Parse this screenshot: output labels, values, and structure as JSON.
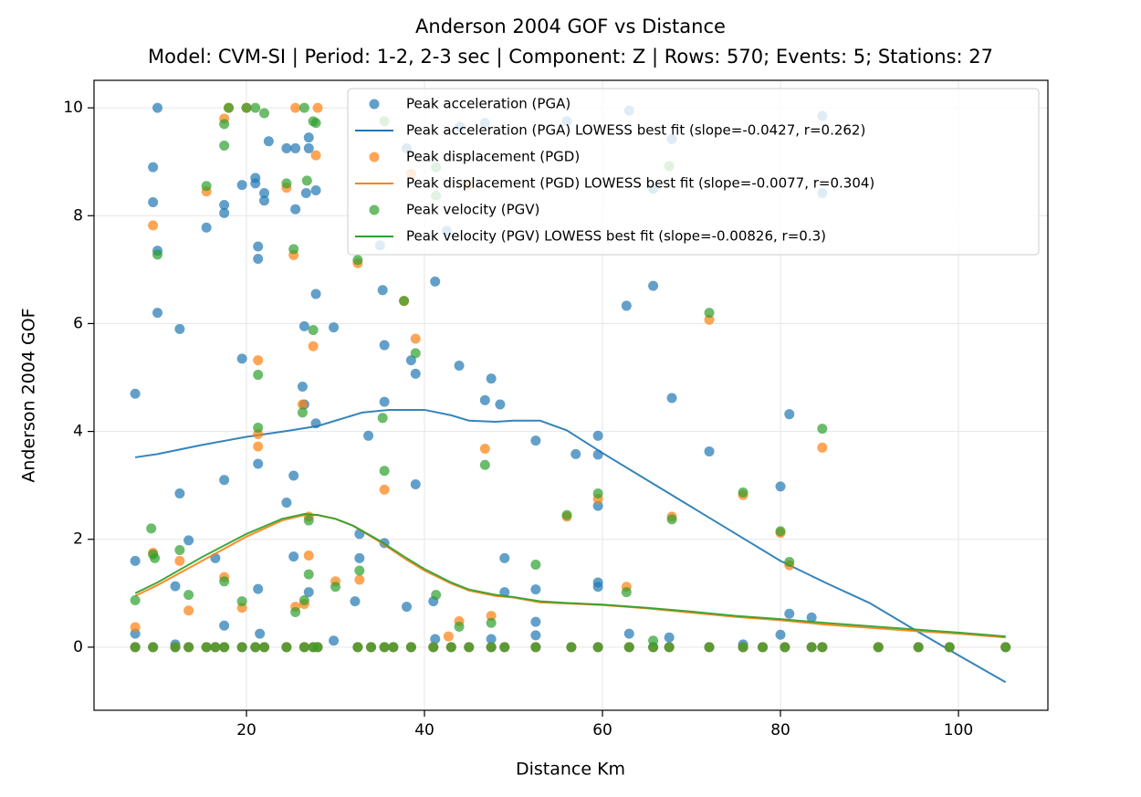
{
  "chart_data": {
    "type": "scatter",
    "title": "Anderson 2004 GOF vs Distance",
    "subtitle": "Model: CVM-SI | Period: 1-2, 2-3 sec | Component: Z | Rows: 570; Events: 5; Stations: 27",
    "x_label": "Distance Km",
    "y_label": "Anderson 2004 GOF",
    "xlim": [
      2.87,
      110.05
    ],
    "ylim": [
      -1.17,
      10.51
    ],
    "xticks": [
      20,
      40,
      60,
      80,
      100
    ],
    "yticks": [
      0,
      2,
      4,
      6,
      8,
      10
    ],
    "grid": true,
    "legend": "upper right",
    "series": [
      {
        "name": "Peak acceleration (PGA)",
        "type": "scatter",
        "color": "#1f77b4",
        "x": [
          7.5,
          7.5,
          7.5,
          9.5,
          9.5,
          10,
          10,
          10,
          12,
          12,
          12.5,
          12.5,
          13.5,
          15.5,
          16.5,
          17.5,
          17.5,
          17.5,
          17.5,
          19.5,
          19.5,
          21,
          21,
          21.3,
          21.3,
          21.3,
          21.3,
          21.5,
          22,
          22,
          22.5,
          24.5,
          24.5,
          25.3,
          25.3,
          25.5,
          25.5,
          26.3,
          26.5,
          26.5,
          26.7,
          27,
          27,
          27,
          27.8,
          27.8,
          27.8,
          29.8,
          29.8,
          32.2,
          32.7,
          32.7,
          33.7,
          35,
          35.3,
          35.5,
          35.5,
          35.5,
          38,
          38,
          38.5,
          39,
          39,
          41,
          41.2,
          41.2,
          42.5,
          43.9,
          44,
          46.8,
          46.8,
          47.5,
          47.5,
          48.5,
          49,
          49,
          52.5,
          52.5,
          52.5,
          52.5,
          56,
          57,
          59.5,
          59.5,
          59.5,
          59.5,
          59.5,
          62.7,
          63,
          63,
          65.7,
          65.7,
          67.5,
          67.8,
          67.8,
          72,
          75.8,
          80,
          80,
          81,
          81,
          83.5,
          84.7,
          84.7,
          7.5,
          9.5,
          12,
          13.5,
          15.5,
          16.5,
          17.5,
          19.5,
          21,
          22,
          24.5,
          26.5,
          27.5,
          28,
          32.5,
          34,
          35.5,
          36.5,
          38.5,
          41,
          43,
          45,
          47.5,
          49,
          52.5,
          56.5,
          59.5,
          63,
          65.7,
          67.5,
          72,
          75.8,
          78,
          80.5,
          83.5,
          84.7,
          91,
          95.5,
          99,
          105.3
        ],
        "values": [
          4.7,
          1.6,
          0.25,
          8.9,
          8.25,
          10,
          7.35,
          6.2,
          1.13,
          0.05,
          5.9,
          2.85,
          1.98,
          7.78,
          1.65,
          8.05,
          8.2,
          3.1,
          0.4,
          5.35,
          8.57,
          8.7,
          8.6,
          7.43,
          7.2,
          3.4,
          1.08,
          0.25,
          8.42,
          8.28,
          9.38,
          9.25,
          2.68,
          1.68,
          3.18,
          8.12,
          9.25,
          4.83,
          5.95,
          4.5,
          8.42,
          9.45,
          9.25,
          1.02,
          8.47,
          6.55,
          4.15,
          5.93,
          0.12,
          0.85,
          2.1,
          1.65,
          3.92,
          7.45,
          6.62,
          5.6,
          4.55,
          1.93,
          0.75,
          9.25,
          5.32,
          5.07,
          3.02,
          0.85,
          6.78,
          0.15,
          7.72,
          5.22,
          9.65,
          4.58,
          9.72,
          4.98,
          0.15,
          4.5,
          1.65,
          1.02,
          3.83,
          1.07,
          0.47,
          0.22,
          9.75,
          3.58,
          3.92,
          3.57,
          2.62,
          1.2,
          1.12,
          6.33,
          0.25,
          9.95,
          6.7,
          8.5,
          0.18,
          4.62,
          9.42,
          3.63,
          0.05,
          2.98,
          0.23,
          4.32,
          0.62,
          0.55,
          9.85,
          8.42,
          0,
          0,
          0,
          0,
          0,
          0,
          0,
          0,
          0,
          0,
          0,
          0,
          0,
          0,
          0,
          0,
          0,
          0,
          0,
          0,
          0,
          0,
          0,
          0,
          0,
          0,
          0,
          0,
          0,
          0,
          0,
          0,
          0,
          0,
          0,
          0,
          0,
          0,
          0,
          0
        ]
      },
      {
        "name": "Peak acceleration (PGA) LOWESS best fit (slope=-0.0427, r=0.262)",
        "type": "line",
        "color": "#1f77b4",
        "x": [
          7.5,
          10,
          15,
          20,
          25,
          28,
          30,
          33,
          36,
          40,
          43,
          45,
          48,
          50,
          53,
          56,
          60,
          65,
          70,
          75,
          80,
          85,
          90,
          95,
          100,
          105.3
        ],
        "values": [
          3.52,
          3.58,
          3.75,
          3.9,
          4.02,
          4.1,
          4.2,
          4.35,
          4.4,
          4.4,
          4.3,
          4.2,
          4.18,
          4.2,
          4.2,
          4.02,
          3.6,
          3.1,
          2.6,
          2.1,
          1.6,
          1.2,
          0.82,
          0.33,
          -0.15,
          -0.65
        ]
      },
      {
        "name": "Peak displacement (PGD)",
        "type": "scatter",
        "color": "#ff7f0e",
        "x": [
          7.5,
          9.5,
          9.5,
          12.5,
          13.5,
          15.5,
          17.5,
          17.5,
          19.5,
          21.3,
          21.3,
          21.3,
          24.5,
          25.3,
          25.5,
          26.3,
          26.5,
          27,
          27,
          27.5,
          27.8,
          30,
          32.5,
          32.7,
          35.5,
          37.7,
          38.5,
          39,
          42.7,
          43.9,
          45,
          46.8,
          47.5,
          56,
          59.5,
          62.7,
          67.8,
          72,
          75.8,
          80,
          81,
          84.7,
          18,
          20,
          25.5,
          28,
          7.5,
          9.5,
          12,
          13.5,
          15.5,
          16.5,
          17.5,
          19.5,
          21,
          22,
          24.5,
          26.5,
          27.5,
          28,
          32.5,
          34,
          35.5,
          36.5,
          38.5,
          41,
          43,
          45,
          47.5,
          49,
          52.5,
          56.5,
          59.5,
          63,
          65.7,
          67.5,
          72,
          75.8,
          78,
          80.5,
          83.5,
          84.7,
          91,
          95.5,
          99,
          105.3
        ],
        "values": [
          0.37,
          1.75,
          7.82,
          1.6,
          0.68,
          8.45,
          9.8,
          1.3,
          0.73,
          5.32,
          3.72,
          3.95,
          8.52,
          7.27,
          0.75,
          4.5,
          0.8,
          2.42,
          1.7,
          5.58,
          9.12,
          1.22,
          7.12,
          1.25,
          2.92,
          6.42,
          8.78,
          5.72,
          0.2,
          0.48,
          8.57,
          3.68,
          0.58,
          2.42,
          2.75,
          1.12,
          2.42,
          6.07,
          2.82,
          2.12,
          1.52,
          3.7,
          10,
          10,
          10,
          10,
          0,
          0,
          0,
          0,
          0,
          0,
          0,
          0,
          0,
          0,
          0,
          0,
          0,
          0,
          0,
          0,
          0,
          0,
          0,
          0,
          0,
          0,
          0,
          0,
          0,
          0,
          0,
          0,
          0,
          0,
          0,
          0,
          0,
          0,
          0,
          0,
          0,
          0,
          0,
          0
        ]
      },
      {
        "name": "Peak displacement (PGD) LOWESS best fit (slope=-0.0077, r=0.304)",
        "type": "line",
        "color": "#ff7f0e",
        "x": [
          7.5,
          10,
          15,
          20,
          24,
          26.5,
          28,
          30,
          32,
          35,
          38,
          40,
          43,
          45,
          48,
          50,
          53,
          56,
          60,
          65,
          70,
          75,
          80,
          85,
          90,
          95,
          100,
          105.3
        ],
        "values": [
          0.95,
          1.15,
          1.6,
          2.05,
          2.35,
          2.45,
          2.45,
          2.38,
          2.25,
          1.95,
          1.62,
          1.42,
          1.18,
          1.05,
          0.95,
          0.92,
          0.83,
          0.81,
          0.78,
          0.72,
          0.64,
          0.56,
          0.5,
          0.42,
          0.36,
          0.3,
          0.25,
          0.18
        ]
      },
      {
        "name": "Peak velocity (PGV)",
        "type": "scatter",
        "color": "#2ca02c",
        "x": [
          7.5,
          9.3,
          9.5,
          10,
          9.7,
          12.5,
          13.5,
          15.5,
          17.5,
          17.5,
          17.5,
          19.5,
          21.3,
          21.3,
          24.5,
          25.3,
          25.5,
          26.3,
          26.5,
          26.8,
          27,
          27,
          27.5,
          27.8,
          30,
          32.5,
          32.7,
          35.5,
          35.3,
          37.7,
          39,
          41.3,
          41.3,
          41.3,
          43.9,
          46.8,
          47.5,
          52.5,
          56,
          59.5,
          62.7,
          65.7,
          67.5,
          67.8,
          72,
          75.8,
          80,
          81,
          84.7,
          18,
          20,
          21,
          22,
          26.5,
          27.5,
          35.5,
          7.5,
          9.5,
          12,
          13.5,
          15.5,
          16.5,
          17.5,
          19.5,
          21,
          22,
          24.5,
          26.5,
          27.5,
          28,
          32.5,
          34,
          35.5,
          36.5,
          38.5,
          41,
          43,
          45,
          47.5,
          49,
          52.5,
          56.5,
          59.5,
          63,
          65.7,
          67.5,
          72,
          75.8,
          78,
          80.5,
          83.5,
          84.7,
          91,
          95.5,
          99,
          105.3
        ],
        "values": [
          0.87,
          2.2,
          1.72,
          7.28,
          1.65,
          1.8,
          0.97,
          8.55,
          9.7,
          9.3,
          1.22,
          0.85,
          4.07,
          5.05,
          8.6,
          7.38,
          0.65,
          4.35,
          0.87,
          8.65,
          2.35,
          1.35,
          5.88,
          9.72,
          1.12,
          7.18,
          1.42,
          3.27,
          4.25,
          6.42,
          5.45,
          0.97,
          8.37,
          8.9,
          0.38,
          3.38,
          0.45,
          1.53,
          2.45,
          2.85,
          1.02,
          0.12,
          8.92,
          2.37,
          6.2,
          2.87,
          2.15,
          1.58,
          4.05,
          10,
          10,
          10,
          9.9,
          10,
          9.75,
          9.75,
          0,
          0,
          0,
          0,
          0,
          0,
          0,
          0,
          0,
          0,
          0,
          0,
          0,
          0,
          0,
          0,
          0,
          0,
          0,
          0,
          0,
          0,
          0,
          0,
          0,
          0,
          0,
          0,
          0,
          0,
          0,
          0,
          0,
          0,
          0,
          0,
          0,
          0,
          0,
          0
        ]
      },
      {
        "name": "Peak velocity (PGV) LOWESS best fit (slope=-0.00826, r=0.3)",
        "type": "line",
        "color": "#2ca02c",
        "x": [
          7.5,
          10,
          15,
          20,
          24,
          26.5,
          28,
          30,
          32,
          35,
          38,
          40,
          43,
          45,
          48,
          50,
          53,
          56,
          60,
          65,
          70,
          75,
          80,
          85,
          90,
          95,
          100,
          105.3
        ],
        "values": [
          1.0,
          1.2,
          1.67,
          2.1,
          2.38,
          2.47,
          2.45,
          2.38,
          2.25,
          1.97,
          1.65,
          1.45,
          1.2,
          1.07,
          0.97,
          0.93,
          0.85,
          0.82,
          0.79,
          0.73,
          0.66,
          0.58,
          0.52,
          0.45,
          0.39,
          0.33,
          0.27,
          0.2
        ]
      }
    ]
  }
}
